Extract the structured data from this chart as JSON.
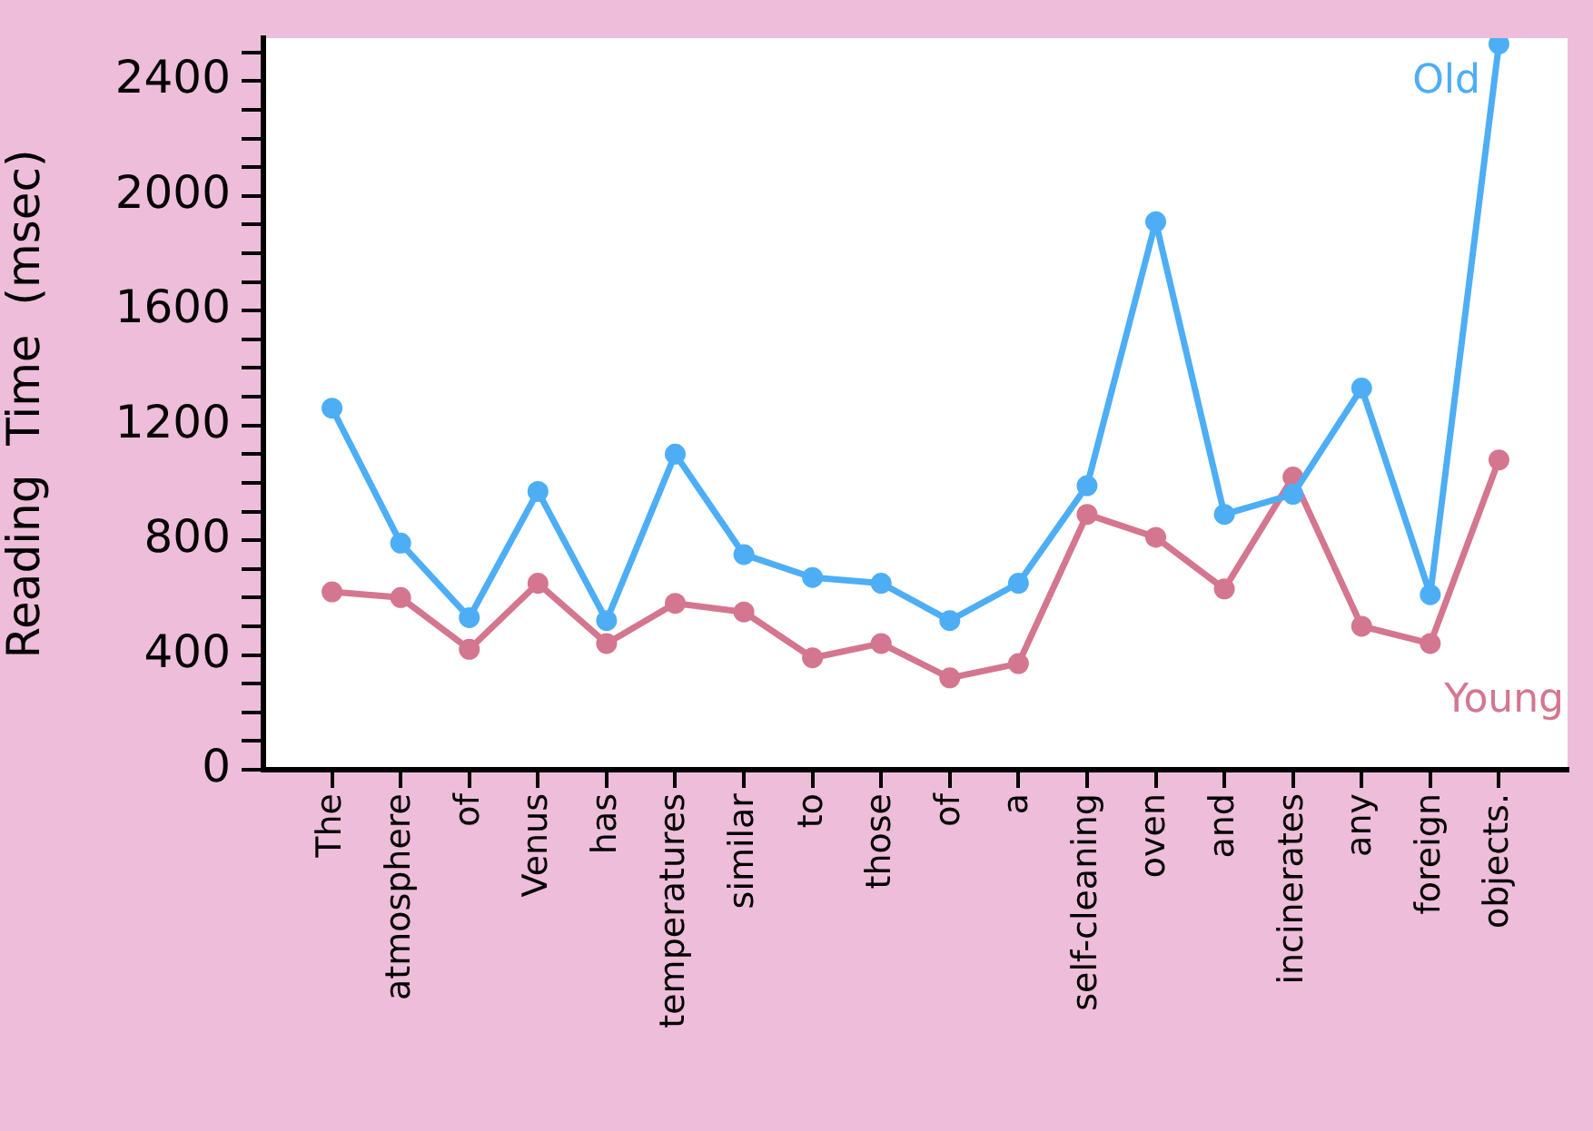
{
  "chart_data": {
    "type": "line",
    "ylabel": "Reading  Time  (msec)",
    "categories": [
      "The",
      "atmosphere",
      "of",
      "Venus",
      "has",
      "temperatures",
      "similar",
      "to",
      "those",
      "of",
      "a",
      "self-cleaning",
      "oven",
      "and",
      "incinerates",
      "any",
      "foreign",
      "objects."
    ],
    "series": [
      {
        "name": "Old",
        "color": "#4daef5",
        "values": [
          1260,
          790,
          530,
          970,
          520,
          1100,
          750,
          670,
          650,
          520,
          650,
          990,
          1910,
          890,
          960,
          1330,
          610,
          2530
        ]
      },
      {
        "name": "Young",
        "color": "#d4768f",
        "values": [
          620,
          600,
          420,
          650,
          440,
          580,
          550,
          390,
          440,
          320,
          370,
          890,
          810,
          630,
          1020,
          500,
          440,
          1080
        ]
      }
    ],
    "ylim": [
      0,
      2550
    ],
    "yticks": [
      0,
      {
        "value": 100,
        "label": null
      },
      {
        "value": 200,
        "label": null
      },
      {
        "value": 300,
        "label": null
      },
      400,
      {
        "value": 500,
        "label": null
      },
      {
        "value": 600,
        "label": null
      },
      {
        "value": 700,
        "label": null
      },
      800,
      {
        "value": 900,
        "label": null
      },
      {
        "value": 1000,
        "label": null
      },
      {
        "value": 1100,
        "label": null
      },
      1200,
      {
        "value": 1300,
        "label": null
      },
      {
        "value": 1400,
        "label": null
      },
      {
        "value": 1500,
        "label": null
      },
      1600,
      {
        "value": 1700,
        "label": null
      },
      {
        "value": 1800,
        "label": null
      },
      {
        "value": 1900,
        "label": null
      },
      2000,
      {
        "value": 2100,
        "label": null
      },
      {
        "value": 2200,
        "label": null
      },
      {
        "value": 2300,
        "label": null
      },
      2400,
      {
        "value": 2500,
        "label": null
      }
    ],
    "marker": "circle",
    "grid": false,
    "legend": false
  }
}
